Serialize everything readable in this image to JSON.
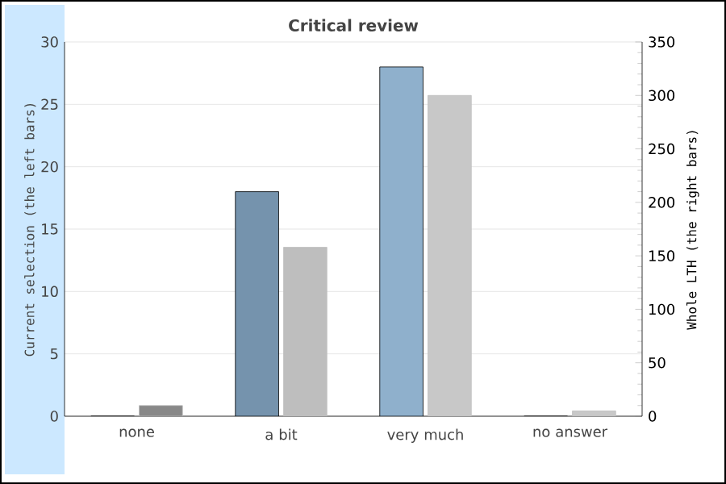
{
  "chart_data": {
    "type": "bar",
    "title": "Critical review",
    "categories": [
      "none",
      "a bit",
      "very much",
      "no answer"
    ],
    "ylabel": "Current selection (the left bars)",
    "y2label": "Whole LTH (the right bars)",
    "series": [
      {
        "colors": [
          "#7593ad",
          "#7593ad",
          "#8fb0cc",
          "#8fb0cc"
        ],
        "values": [
          0,
          18,
          28,
          0
        ]
      },
      {
        "axis": "y2",
        "colors": [
          "#888888",
          "#bebebe",
          "#c8c8c8",
          "#c8c8c8"
        ],
        "values": [
          10,
          158,
          300,
          5
        ]
      }
    ],
    "ylim": [
      0,
      30
    ],
    "yticks": [
      0,
      5,
      10,
      15,
      20,
      25,
      30
    ],
    "y2lim": [
      0,
      350
    ],
    "y2ticks": [
      0,
      50,
      100,
      150,
      200,
      250,
      300,
      350
    ],
    "grid": "y"
  }
}
